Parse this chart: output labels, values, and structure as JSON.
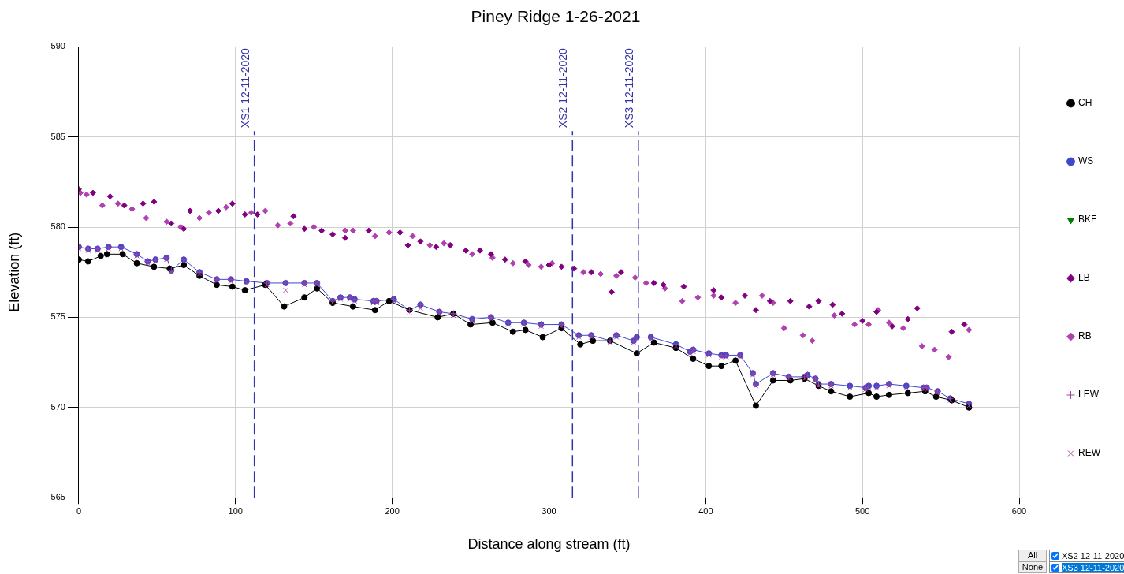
{
  "chart_data": {
    "type": "scatter",
    "title": "Piney Ridge 1-26-2021",
    "xlabel": "Distance along stream (ft)",
    "ylabel": "Elevation (ft)",
    "xlim": [
      0,
      600
    ],
    "xticks": [
      0,
      100,
      200,
      300,
      400,
      500,
      600
    ],
    "ylim": [
      565,
      590
    ],
    "yticks": [
      565,
      570,
      575,
      580,
      585,
      590
    ],
    "grid": true,
    "legend": "right",
    "series": [
      {
        "name": "CH",
        "type": "line",
        "color": "#000000",
        "marker": "circle",
        "x": [
          0,
          6,
          14,
          18,
          28,
          37,
          48,
          58,
          67,
          77,
          88,
          98,
          106,
          119,
          131,
          144,
          152,
          162,
          175,
          189,
          198,
          211,
          229,
          239,
          250,
          264,
          277,
          285,
          296,
          308,
          320,
          328,
          339,
          356,
          367,
          381,
          392,
          402,
          410,
          419,
          432,
          443,
          454,
          463,
          472,
          480,
          492,
          504,
          509,
          517,
          529,
          540,
          547,
          557,
          568
        ],
        "values": [
          578.2,
          578.1,
          578.4,
          578.5,
          578.5,
          578.0,
          577.8,
          577.7,
          577.9,
          577.3,
          576.8,
          576.7,
          576.5,
          576.8,
          575.6,
          576.1,
          576.6,
          575.8,
          575.6,
          575.4,
          575.9,
          575.4,
          575.0,
          575.2,
          574.6,
          574.7,
          574.2,
          574.3,
          573.9,
          574.4,
          573.5,
          573.7,
          573.7,
          573.0,
          573.6,
          573.3,
          572.7,
          572.3,
          572.3,
          572.6,
          570.1,
          571.5,
          571.5,
          571.6,
          571.2,
          570.9,
          570.6,
          570.8,
          570.6,
          570.7,
          570.8,
          570.9,
          570.6,
          570.4,
          570.0
        ]
      },
      {
        "name": "WS",
        "type": "line",
        "color": "#3f48cc",
        "marker": "circle",
        "x": [
          0,
          6,
          12,
          19,
          27,
          37,
          44,
          49,
          56,
          59,
          67,
          77,
          88,
          97,
          107,
          120,
          132,
          144,
          152,
          162,
          167,
          173,
          176,
          188,
          190,
          201,
          211,
          218,
          230,
          239,
          251,
          263,
          274,
          284,
          295,
          308,
          319,
          327,
          339,
          343,
          354,
          356,
          365,
          381,
          390,
          392,
          402,
          410,
          413,
          422,
          430,
          432,
          443,
          453,
          463,
          465,
          470,
          472,
          480,
          492,
          502,
          504,
          509,
          517,
          528,
          539,
          541,
          548,
          556,
          568
        ],
        "values": [
          578.9,
          578.8,
          578.8,
          578.9,
          578.9,
          578.5,
          578.1,
          578.2,
          578.3,
          577.6,
          578.2,
          577.5,
          577.1,
          577.1,
          577.0,
          576.9,
          576.9,
          576.9,
          576.9,
          575.9,
          576.1,
          576.1,
          576.0,
          575.9,
          575.9,
          576.0,
          575.4,
          575.7,
          575.3,
          575.2,
          574.9,
          575.0,
          574.7,
          574.7,
          574.6,
          574.6,
          574.0,
          574.0,
          573.7,
          574.0,
          573.7,
          573.9,
          573.9,
          573.5,
          573.1,
          573.2,
          573.0,
          572.9,
          572.9,
          572.9,
          571.9,
          571.3,
          571.9,
          571.7,
          571.7,
          571.8,
          571.6,
          571.3,
          571.3,
          571.2,
          571.1,
          571.2,
          571.2,
          571.3,
          571.2,
          571.1,
          571.1,
          570.9,
          570.5,
          570.2
        ]
      },
      {
        "name": "BKF",
        "type": "scatter",
        "color": "#008000",
        "marker": "triangle"
      },
      {
        "name": "LB",
        "type": "scatter",
        "color": "#800080",
        "marker": "diamond",
        "x": [
          0,
          9,
          20,
          29,
          41,
          48,
          59,
          67,
          71,
          89,
          98,
          106,
          114,
          137,
          144,
          155,
          162,
          170,
          185,
          205,
          210,
          218,
          228,
          237,
          247,
          256,
          263,
          272,
          285,
          300,
          308,
          316,
          327,
          340,
          346,
          367,
          373,
          386,
          405,
          410,
          425,
          432,
          441,
          454,
          466,
          472,
          481,
          487,
          500,
          509,
          519,
          529,
          535,
          557,
          565
        ],
        "values": [
          582.1,
          581.9,
          581.7,
          581.2,
          581.3,
          581.4,
          580.2,
          579.9,
          580.9,
          580.9,
          581.3,
          580.7,
          580.7,
          580.6,
          579.9,
          579.8,
          579.6,
          579.4,
          579.8,
          579.7,
          579.0,
          579.2,
          578.9,
          579.0,
          578.7,
          578.7,
          578.5,
          578.2,
          578.1,
          577.9,
          577.8,
          577.7,
          577.5,
          576.4,
          577.5,
          576.9,
          576.8,
          576.7,
          576.5,
          576.1,
          576.2,
          575.4,
          575.9,
          575.9,
          575.6,
          575.9,
          575.7,
          575.2,
          574.8,
          575.3,
          574.5,
          574.9,
          575.5,
          574.2,
          574.6
        ]
      },
      {
        "name": "RB",
        "type": "scatter",
        "color": "#b040b0",
        "marker": "diamond",
        "x": [
          1,
          5,
          15,
          25,
          34,
          43,
          56,
          65,
          77,
          83,
          94,
          110,
          119,
          127,
          135,
          150,
          170,
          175,
          189,
          198,
          213,
          224,
          233,
          251,
          264,
          277,
          287,
          295,
          302,
          322,
          333,
          343,
          355,
          362,
          374,
          385,
          395,
          405,
          419,
          436,
          443,
          450,
          462,
          468,
          482,
          495,
          504,
          510,
          517,
          526,
          538,
          546,
          555,
          568
        ],
        "values": [
          581.9,
          581.8,
          581.2,
          581.3,
          581.0,
          580.5,
          580.3,
          580.0,
          580.5,
          580.8,
          581.1,
          580.8,
          580.9,
          580.1,
          580.2,
          580.0,
          579.8,
          579.8,
          579.5,
          579.7,
          579.5,
          579.0,
          579.1,
          578.5,
          578.3,
          578.0,
          577.9,
          577.8,
          578.0,
          577.5,
          577.4,
          577.3,
          577.2,
          576.9,
          576.6,
          575.9,
          576.1,
          576.2,
          575.8,
          576.2,
          575.8,
          574.4,
          574.0,
          573.7,
          575.1,
          574.6,
          574.6,
          575.4,
          574.7,
          574.4,
          573.4,
          573.2,
          572.8,
          574.3
        ]
      },
      {
        "name": "LEW",
        "type": "scatter",
        "color": "#a040a0",
        "marker": "plus",
        "x": [
          0,
          6,
          12,
          19,
          27,
          37,
          44,
          49,
          56,
          59,
          67,
          77,
          88,
          97,
          107,
          120,
          132,
          144,
          152,
          162,
          167,
          173,
          176,
          188,
          190,
          201,
          211,
          218,
          230,
          239,
          251,
          263,
          274,
          284,
          295,
          308,
          319,
          327,
          339,
          343,
          354,
          356,
          365,
          381,
          390,
          392,
          402,
          410,
          413,
          422,
          430,
          432,
          443,
          453,
          463,
          465,
          470,
          472,
          480,
          492,
          502,
          504,
          509,
          517,
          528,
          539,
          541,
          548,
          556,
          568
        ],
        "values": [
          578.9,
          578.8,
          578.8,
          578.9,
          578.9,
          578.5,
          578.1,
          578.2,
          578.3,
          577.6,
          578.2,
          577.5,
          577.1,
          577.1,
          577.0,
          576.9,
          576.9,
          576.9,
          576.9,
          575.9,
          576.1,
          576.1,
          576.0,
          575.9,
          575.9,
          576.0,
          575.4,
          575.7,
          575.3,
          575.2,
          574.9,
          575.0,
          574.7,
          574.7,
          574.6,
          574.6,
          574.0,
          574.0,
          573.7,
          574.0,
          573.7,
          573.9,
          573.9,
          573.5,
          573.1,
          573.2,
          573.0,
          572.9,
          572.9,
          572.9,
          571.9,
          571.3,
          571.9,
          571.7,
          571.7,
          571.8,
          571.6,
          571.3,
          571.3,
          571.2,
          571.1,
          571.2,
          571.2,
          571.3,
          571.2,
          571.1,
          571.1,
          570.9,
          570.5,
          570.2
        ]
      },
      {
        "name": "REW",
        "type": "scatter",
        "color": "#a040a0",
        "marker": "cross",
        "x": [
          0,
          6,
          12,
          19,
          27,
          37,
          44,
          49,
          56,
          59,
          67,
          77,
          88,
          97,
          107,
          120,
          132,
          144,
          152,
          162,
          167,
          173,
          176,
          188,
          190,
          201,
          211,
          218,
          230,
          239,
          251,
          263,
          274,
          284,
          295,
          308,
          319,
          327,
          339,
          343,
          354,
          356,
          365,
          381,
          390,
          392,
          402,
          410,
          413,
          422,
          430,
          432,
          443,
          453,
          463,
          465,
          470,
          472,
          480,
          492,
          502,
          504,
          509,
          517,
          528,
          539,
          541,
          548,
          556,
          568
        ],
        "values": [
          578.8,
          578.7,
          578.7,
          578.8,
          578.8,
          578.4,
          578.0,
          578.1,
          578.2,
          577.5,
          578.1,
          577.4,
          577.0,
          577.0,
          576.9,
          576.8,
          576.5,
          576.8,
          576.8,
          575.8,
          576.0,
          576.0,
          575.9,
          575.8,
          575.8,
          575.9,
          575.3,
          575.5,
          575.2,
          575.1,
          574.8,
          574.9,
          574.6,
          574.6,
          574.5,
          574.5,
          573.9,
          573.9,
          573.6,
          573.9,
          573.6,
          573.8,
          573.8,
          573.4,
          573.0,
          573.1,
          572.9,
          572.8,
          572.8,
          572.8,
          571.8,
          571.2,
          571.8,
          571.6,
          571.6,
          571.7,
          571.5,
          571.2,
          571.2,
          571.1,
          571.0,
          571.1,
          571.1,
          571.2,
          571.1,
          571.0,
          571.0,
          570.8,
          570.4,
          570.1
        ]
      }
    ],
    "ref_lines": [
      {
        "axis": "x",
        "value": 112,
        "label": "XS1 12-11-2020",
        "color": "#3333aa",
        "line_style": "dashed"
      },
      {
        "axis": "x",
        "value": 315,
        "label": "XS2 12-11-2020",
        "color": "#3333aa",
        "line_style": "dashed"
      },
      {
        "axis": "x",
        "value": 357,
        "label": "XS3 12-11-2020",
        "color": "#3333aa",
        "line_style": "dashed"
      }
    ],
    "annotations": [
      "All",
      "None",
      "XS2 12-11-2020",
      "XS3 12-11-2020"
    ]
  }
}
